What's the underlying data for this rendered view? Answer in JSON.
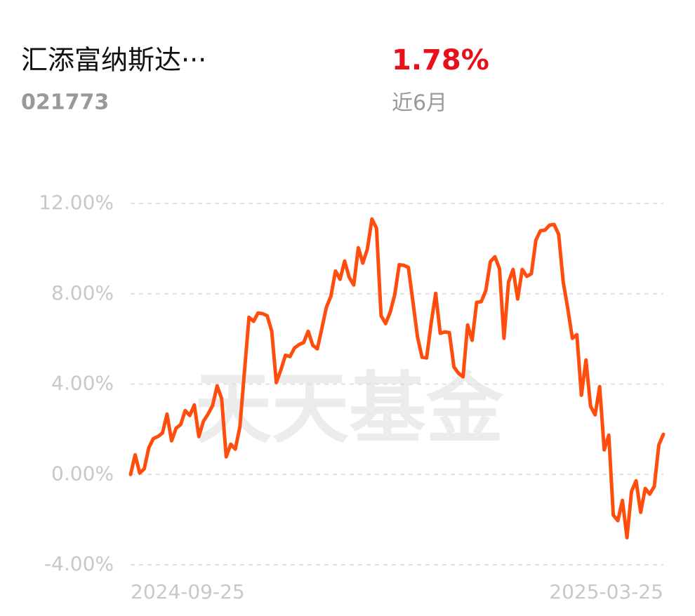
{
  "header": {
    "title": "汇添富纳斯达···",
    "code": "021773",
    "return": "1.78%",
    "period": "近6月"
  },
  "chart_data": {
    "type": "line",
    "watermark": "天天基金",
    "color": "#ff4d0d",
    "grid": true,
    "ylim": [
      -4,
      12
    ],
    "yticks": [
      {
        "value": -4,
        "label": "-4.00%"
      },
      {
        "value": 0,
        "label": "0.00%"
      },
      {
        "value": 4,
        "label": "4.00%"
      },
      {
        "value": 8,
        "label": "8.00%"
      },
      {
        "value": 12,
        "label": "12.00%"
      }
    ],
    "categories": [
      "2024-09-25",
      null,
      null,
      null,
      null,
      null,
      null,
      null,
      null,
      null,
      null,
      null,
      null,
      null,
      null,
      null,
      null,
      null,
      null,
      null,
      null,
      null,
      null,
      null,
      null,
      null,
      null,
      null,
      null,
      null,
      null,
      null,
      null,
      null,
      null,
      null,
      null,
      null,
      null,
      null,
      null,
      null,
      null,
      null,
      null,
      null,
      null,
      null,
      null,
      null,
      null,
      null,
      null,
      null,
      null,
      null,
      null,
      null,
      null,
      null,
      null,
      null,
      null,
      null,
      null,
      null,
      null,
      null,
      null,
      null,
      null,
      null,
      null,
      null,
      null,
      null,
      null,
      null,
      null,
      null,
      null,
      null,
      null,
      null,
      null,
      null,
      null,
      null,
      null,
      null,
      null,
      null,
      null,
      null,
      null,
      null,
      null,
      null,
      null,
      null,
      null,
      null,
      null,
      null,
      null,
      null,
      null,
      null,
      null,
      null,
      null,
      null,
      null,
      null,
      null,
      null,
      null,
      "2025-03-25"
    ],
    "values": [
      0,
      0.87,
      0.06,
      0.25,
      1.18,
      1.59,
      1.68,
      1.83,
      2.67,
      1.49,
      2.05,
      2.21,
      2.83,
      2.61,
      3.08,
      1.68,
      2.36,
      2.67,
      3.05,
      3.92,
      3.36,
      0.78,
      1.34,
      1.12,
      2.11,
      4.54,
      6.96,
      6.78,
      7.15,
      7.12,
      7.03,
      6.34,
      4.07,
      4.63,
      5.28,
      5.22,
      5.6,
      5.75,
      5.84,
      6.34,
      5.72,
      5.56,
      6.47,
      7.4,
      7.9,
      9.01,
      8.64,
      9.45,
      8.73,
      8.39,
      10.04,
      9.36,
      9.98,
      11.31,
      10.91,
      7.03,
      6.68,
      7.18,
      7.96,
      9.29,
      9.26,
      9.17,
      7.65,
      6.09,
      5.19,
      5.16,
      6.71,
      8.02,
      6.25,
      6.31,
      6.28,
      4.76,
      4.48,
      4.32,
      6.62,
      5.94,
      7.62,
      7.65,
      8.14,
      9.42,
      9.64,
      9.11,
      6.03,
      8.52,
      9.08,
      7.77,
      9.08,
      8.77,
      8.89,
      10.38,
      10.79,
      10.82,
      11.04,
      11.07,
      10.63,
      8.52,
      7.34,
      6.03,
      6.19,
      3.51,
      5.07,
      3.02,
      2.64,
      3.89,
      1.09,
      1.74,
      -1.8,
      -2.05,
      -1.15,
      -2.8,
      -0.75,
      -0.28,
      -1.68,
      -0.62,
      -0.87,
      -0.53,
      1.31,
      1.78
    ]
  }
}
